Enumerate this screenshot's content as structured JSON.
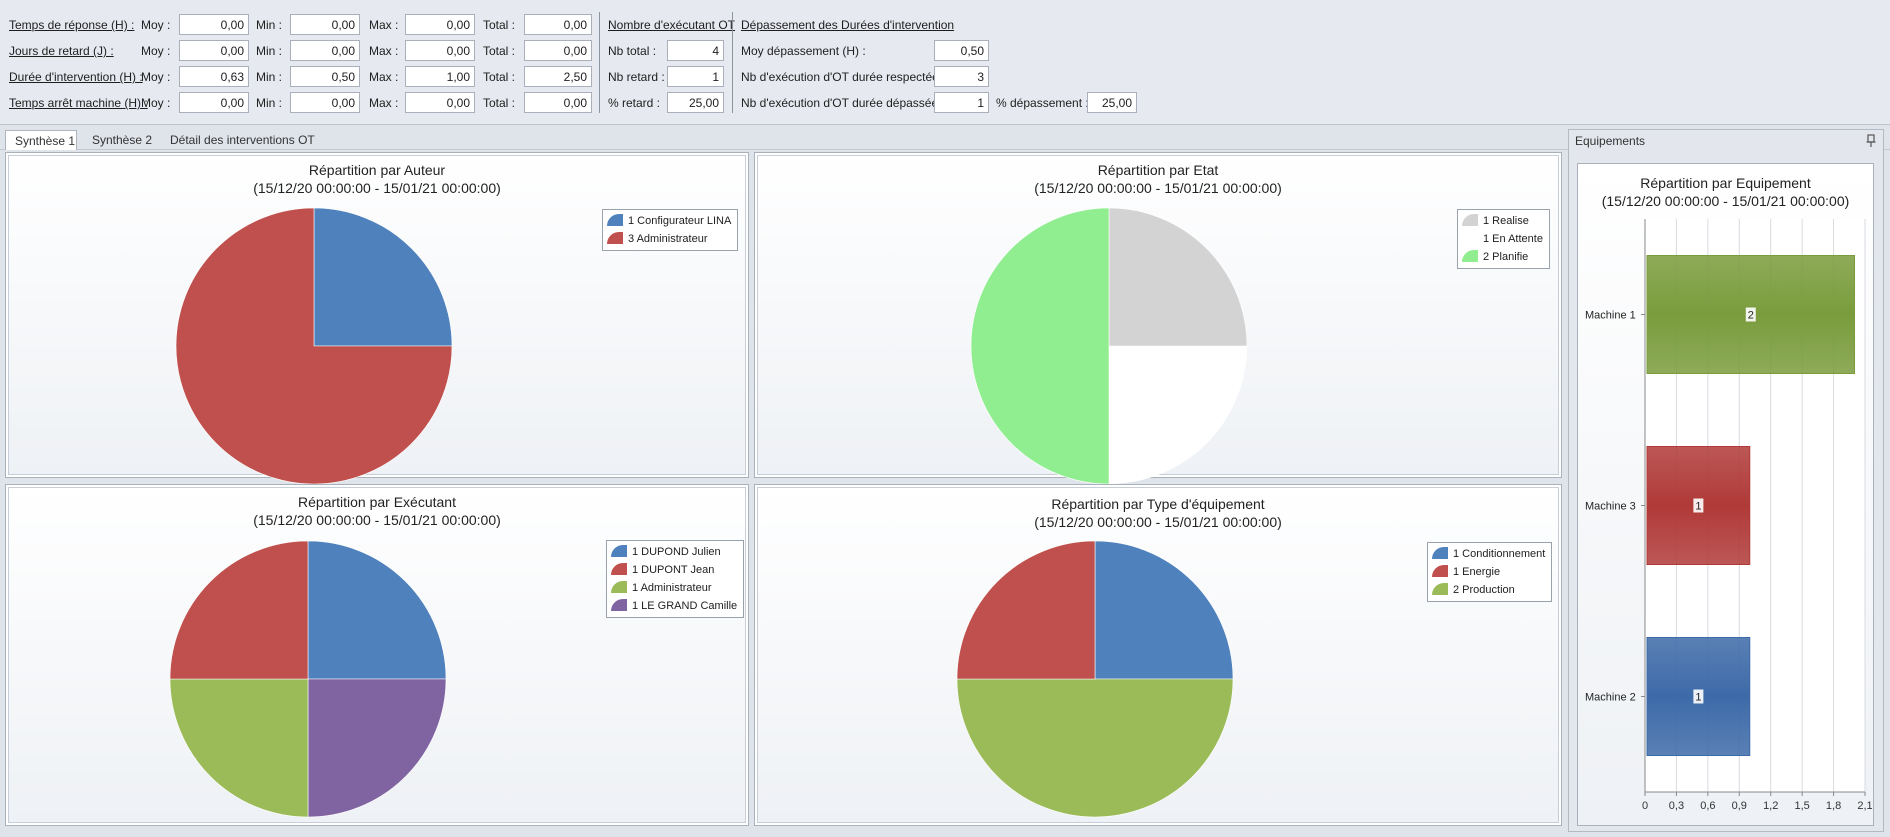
{
  "stats": {
    "rows": [
      {
        "label": "Temps de réponse (H) :",
        "moy_label": "Moy :",
        "moy": "0,00",
        "min_label": "Min :",
        "min": "0,00",
        "max_label": "Max :",
        "max": "0,00",
        "total_label": "Total :",
        "total": "0,00"
      },
      {
        "label": "Jours de retard (J) :",
        "moy_label": "Moy :",
        "moy": "0,00",
        "min_label": "Min :",
        "min": "0,00",
        "max_label": "Max :",
        "max": "0,00",
        "total_label": "Total :",
        "total": "0,00"
      },
      {
        "label": "Durée d'intervention (H) :",
        "moy_label": "Moy :",
        "moy": "0,63",
        "min_label": "Min :",
        "min": "0,50",
        "max_label": "Max :",
        "max": "1,00",
        "total_label": "Total :",
        "total": "2,50"
      },
      {
        "label": "Temps arrêt machine (H) :",
        "moy_label": "Moy :",
        "moy": "0,00",
        "min_label": "Min :",
        "min": "0,00",
        "max_label": "Max :",
        "max": "0,00",
        "total_label": "Total :",
        "total": "0,00"
      }
    ],
    "executants": {
      "header": "Nombre d'exécutant OT",
      "nb_total_label": "Nb total :",
      "nb_total": "4",
      "nb_retard_label": "Nb retard :",
      "nb_retard": "1",
      "pct_retard_label": "% retard :",
      "pct_retard": "25,00"
    },
    "depassement": {
      "header": "Dépassement des Durées d'intervention",
      "moy_label": "Moy dépassement (H) :",
      "moy": "0,50",
      "respectee_label": "Nb d'exécution d'OT durée respectée :",
      "respectee": "3",
      "depassee_label": "Nb d'exécution d'OT durée dépassée :",
      "depassee": "1",
      "pct_label": "% dépassement :",
      "pct": "25,00"
    }
  },
  "tabs": [
    {
      "label": "Synthèse 1",
      "active": true
    },
    {
      "label": "Synthèse 2",
      "active": false
    },
    {
      "label": "Détail des interventions OT",
      "active": false
    }
  ],
  "date_range": "(15/12/20 00:00:00 - 15/01/21 00:00:00)",
  "pies": [
    {
      "title": "Répartition par Auteur",
      "slices": [
        {
          "label": "1 Configurateur LINA",
          "value": 1,
          "color": "#4f81bd"
        },
        {
          "label": "3 Administrateur",
          "value": 3,
          "color": "#c0504d"
        }
      ]
    },
    {
      "title": "Répartition par Etat",
      "slices": [
        {
          "label": "1 Realise",
          "value": 1,
          "color": "#d3d3d3"
        },
        {
          "label": "1 En Attente",
          "value": 1,
          "color": "#ffffff"
        },
        {
          "label": "2 Planifie",
          "value": 2,
          "color": "#90ee90"
        }
      ]
    },
    {
      "title": "Répartition par Exécutant",
      "slices": [
        {
          "label": "1 DUPOND Julien",
          "value": 1,
          "color": "#4f81bd"
        },
        {
          "label": "1 LE GRAND Camille",
          "value": 1,
          "color": "#8064a2"
        },
        {
          "label": "1 Administrateur",
          "value": 1,
          "color": "#9bbb59"
        },
        {
          "label": "1 DUPONT Jean",
          "value": 1,
          "color": "#c0504d"
        }
      ]
    },
    {
      "title": "Répartition par Type d'équipement",
      "slices": [
        {
          "label": "1 Conditionnement",
          "value": 1,
          "color": "#4f81bd"
        },
        {
          "label": "2 Production",
          "value": 2,
          "color": "#9bbb59"
        },
        {
          "label": "1 Energie",
          "value": 1,
          "color": "#c0504d"
        }
      ]
    }
  ],
  "equipements": {
    "pane_title": "Equipements",
    "pin_icon": "pin-icon"
  },
  "chart_data": [
    {
      "type": "pie",
      "title": "Répartition par Auteur",
      "subtitle": "(15/12/20 00:00:00 - 15/01/21 00:00:00)",
      "legend": "top-right",
      "categories": [
        "Configurateur LINA",
        "Administrateur"
      ],
      "values": [
        1,
        3
      ]
    },
    {
      "type": "pie",
      "title": "Répartition par Etat",
      "subtitle": "(15/12/20 00:00:00 - 15/01/21 00:00:00)",
      "legend": "top-right",
      "categories": [
        "Realise",
        "En Attente",
        "Planifie"
      ],
      "values": [
        1,
        1,
        2
      ]
    },
    {
      "type": "pie",
      "title": "Répartition par Exécutant",
      "subtitle": "(15/12/20 00:00:00 - 15/01/21 00:00:00)",
      "legend": "top-right",
      "categories": [
        "DUPOND Julien",
        "DUPONT Jean",
        "Administrateur",
        "LE GRAND Camille"
      ],
      "values": [
        1,
        1,
        1,
        1
      ]
    },
    {
      "type": "pie",
      "title": "Répartition par Type d'équipement",
      "subtitle": "(15/12/20 00:00:00 - 15/01/21 00:00:00)",
      "legend": "top-right",
      "categories": [
        "Conditionnement",
        "Energie",
        "Production"
      ],
      "values": [
        1,
        1,
        2
      ]
    },
    {
      "type": "bar",
      "orientation": "horizontal",
      "title": "Répartition par Equipement",
      "subtitle": "(15/12/20 00:00:00 - 15/01/21 00:00:00)",
      "categories": [
        "Machine 1",
        "Machine 3",
        "Machine 2"
      ],
      "values": [
        2,
        1,
        1
      ],
      "colors": [
        "#7a9c3c",
        "#b03a38",
        "#3d6aa8"
      ],
      "xlim": [
        0,
        2.1
      ],
      "xticks": [
        "0",
        "0,3",
        "0,6",
        "0,9",
        "1,2",
        "1,5",
        "1,8",
        "2,1"
      ],
      "grid": true
    }
  ]
}
